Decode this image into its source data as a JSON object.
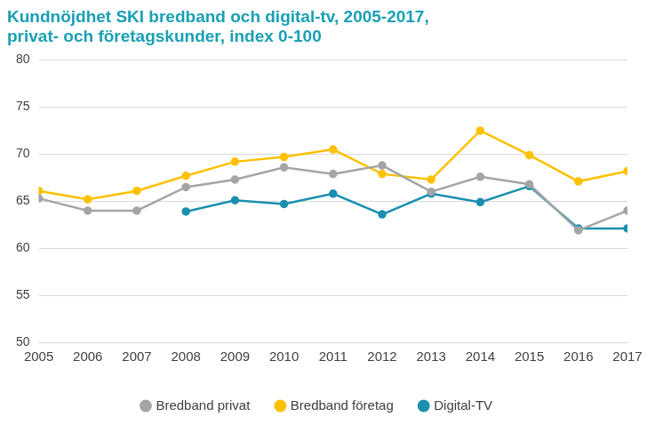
{
  "chart_data": {
    "type": "line",
    "title": [
      "Kundnöjdhet SKI bredband och digital-tv, 2005-2017,",
      "privat- och företagskunder, index 0-100"
    ],
    "categories": [
      "2005",
      "2006",
      "2007",
      "2008",
      "2009",
      "2010",
      "2011",
      "2012",
      "2013",
      "2014",
      "2015",
      "2016",
      "2017"
    ],
    "series": [
      {
        "name": "Bredband privat",
        "color": "#a5a5a5",
        "marker": "circle",
        "values": [
          65.3,
          64.0,
          64.0,
          66.5,
          67.3,
          68.6,
          67.9,
          68.8,
          66.0,
          67.6,
          66.8,
          61.9,
          64.0
        ]
      },
      {
        "name": "Bredband företag",
        "color": "#ffc000",
        "marker": "circle",
        "values": [
          66.1,
          65.2,
          66.1,
          67.7,
          69.2,
          69.7,
          70.5,
          67.9,
          67.3,
          72.5,
          69.9,
          67.1,
          68.2
        ]
      },
      {
        "name": "Digital-TV",
        "color": "#1a8fb0",
        "marker": "circle",
        "values": [
          null,
          null,
          null,
          63.9,
          65.1,
          64.7,
          65.8,
          63.6,
          65.8,
          64.9,
          66.6,
          62.1,
          62.1
        ]
      }
    ],
    "ylim": [
      50,
      80
    ],
    "yticks": [
      50,
      55,
      60,
      65,
      70,
      75,
      80
    ],
    "grid": true,
    "legend": "bottom"
  }
}
